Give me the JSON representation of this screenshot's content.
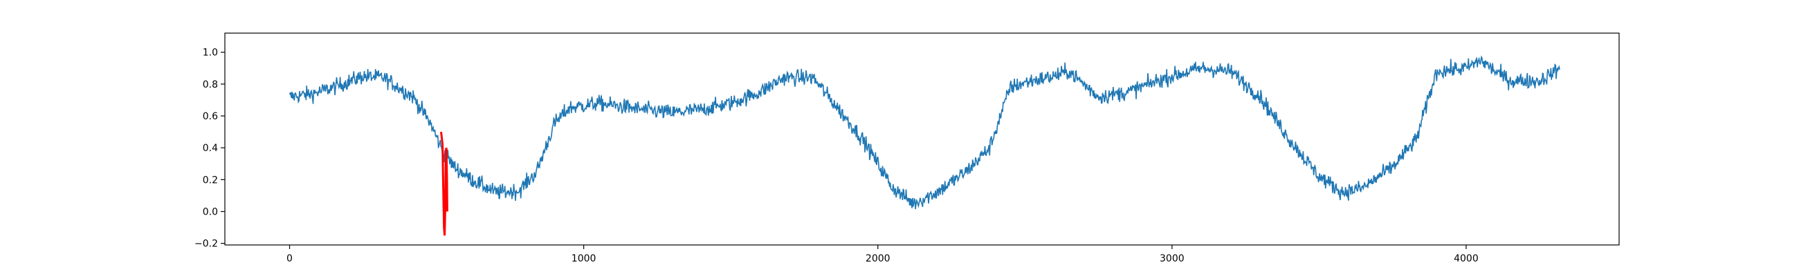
{
  "chart_data": {
    "type": "line",
    "title": "",
    "xlabel": "",
    "ylabel": "",
    "xlim": [
      -220,
      4520
    ],
    "ylim": [
      -0.21,
      1.12
    ],
    "xticks": [
      0,
      1000,
      2000,
      3000,
      4000
    ],
    "yticks": [
      -0.2,
      0.0,
      0.2,
      0.4,
      0.6,
      0.8,
      1.0
    ],
    "xtick_labels": [
      "0",
      "1000",
      "2000",
      "3000",
      "4000"
    ],
    "ytick_labels": [
      "−0.2",
      "0.0",
      "0.2",
      "0.4",
      "0.6",
      "0.8",
      "1.0"
    ],
    "grid": false,
    "legend": "none",
    "series": [
      {
        "color": "#1f77b4",
        "noise": 0.035,
        "x_count": 4320,
        "trend": [
          [
            0,
            0.72
          ],
          [
            80,
            0.74
          ],
          [
            150,
            0.78
          ],
          [
            250,
            0.85
          ],
          [
            320,
            0.84
          ],
          [
            420,
            0.72
          ],
          [
            480,
            0.55
          ],
          [
            520,
            0.38
          ],
          [
            560,
            0.28
          ],
          [
            620,
            0.2
          ],
          [
            700,
            0.12
          ],
          [
            780,
            0.13
          ],
          [
            840,
            0.25
          ],
          [
            900,
            0.55
          ],
          [
            950,
            0.65
          ],
          [
            1050,
            0.68
          ],
          [
            1200,
            0.64
          ],
          [
            1300,
            0.62
          ],
          [
            1400,
            0.64
          ],
          [
            1500,
            0.68
          ],
          [
            1600,
            0.75
          ],
          [
            1680,
            0.84
          ],
          [
            1780,
            0.84
          ],
          [
            1850,
            0.68
          ],
          [
            1950,
            0.45
          ],
          [
            2050,
            0.15
          ],
          [
            2120,
            0.05
          ],
          [
            2200,
            0.12
          ],
          [
            2300,
            0.25
          ],
          [
            2380,
            0.4
          ],
          [
            2450,
            0.78
          ],
          [
            2520,
            0.82
          ],
          [
            2600,
            0.85
          ],
          [
            2650,
            0.88
          ],
          [
            2750,
            0.72
          ],
          [
            2850,
            0.75
          ],
          [
            2950,
            0.82
          ],
          [
            3000,
            0.85
          ],
          [
            3100,
            0.9
          ],
          [
            3200,
            0.88
          ],
          [
            3300,
            0.72
          ],
          [
            3400,
            0.45
          ],
          [
            3500,
            0.22
          ],
          [
            3580,
            0.12
          ],
          [
            3650,
            0.15
          ],
          [
            3750,
            0.28
          ],
          [
            3830,
            0.45
          ],
          [
            3900,
            0.88
          ],
          [
            4000,
            0.9
          ],
          [
            4050,
            0.95
          ],
          [
            4100,
            0.88
          ],
          [
            4150,
            0.82
          ],
          [
            4250,
            0.82
          ],
          [
            4320,
            0.9
          ]
        ]
      },
      {
        "color": "#ff0000",
        "points": [
          [
            515,
            0.5
          ],
          [
            520,
            0.42
          ],
          [
            522,
            0.2
          ],
          [
            525,
            -0.1
          ],
          [
            527,
            -0.15
          ],
          [
            529,
            0.0
          ],
          [
            531,
            0.38
          ],
          [
            533,
            0.4
          ],
          [
            535,
            0.2
          ],
          [
            536,
            0.0
          ]
        ]
      }
    ]
  }
}
